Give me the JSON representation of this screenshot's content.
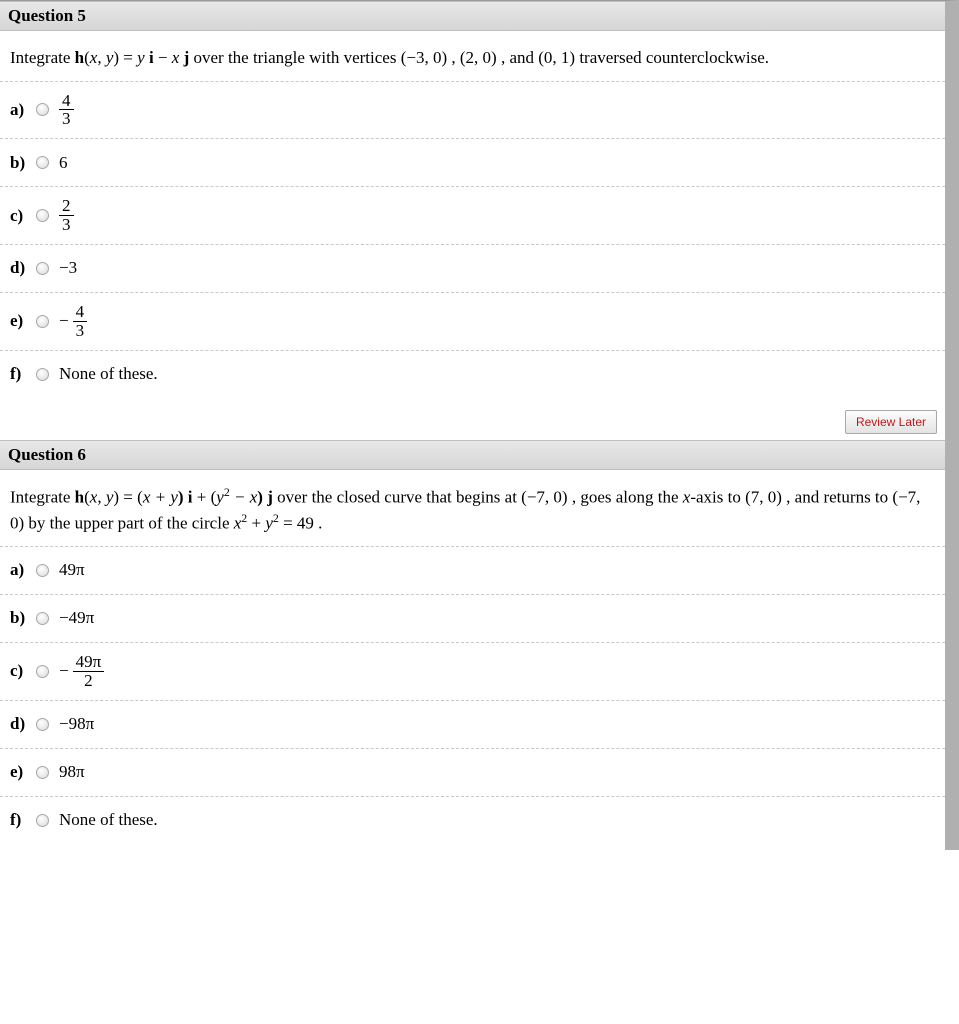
{
  "q5": {
    "header": "Question 5",
    "prompt_parts": {
      "p1": "Integrate  ",
      "fn": "h",
      "args_open": "(",
      "x": "x",
      "comma": ", ",
      "y": "y",
      "args_close": ") = ",
      "term1a": "y",
      "term1b": " i",
      "minus": " − ",
      "term2a": "x",
      "term2b": " j",
      "p2": "   over the triangle with vertices (−3, 0) , (2, 0) , and (0, 1)  traversed counterclockwise."
    },
    "answers": {
      "a": {
        "label": "a)",
        "type": "frac",
        "neg": false,
        "num": "4",
        "den": "3"
      },
      "b": {
        "label": "b)",
        "type": "plain",
        "text": "6"
      },
      "c": {
        "label": "c)",
        "type": "frac",
        "neg": false,
        "num": "2",
        "den": "3"
      },
      "d": {
        "label": "d)",
        "type": "plain",
        "text": "−3"
      },
      "e": {
        "label": "e)",
        "type": "frac",
        "neg": true,
        "num": "4",
        "den": "3"
      },
      "f": {
        "label": "f)",
        "type": "plain",
        "text": "None of these."
      }
    }
  },
  "review_label": "Review Later",
  "q6": {
    "header": "Question 6",
    "prompt_parts": {
      "p1": "Integrate  ",
      "fn": "h",
      "args_open": "(",
      "x": "x",
      "comma": ", ",
      "y": "y",
      "args_close": ") = (",
      "t1": "x + y",
      "t1b": ") i",
      "plus": " + (",
      "t2a": "y",
      "t2exp": "2",
      "t2b": " − x",
      "t2c": ") j",
      "p2": "   over the closed curve that begins at (−7, 0) , goes along the ",
      "xaxis": "x",
      "p2b": "-axis to (7, 0) , and returns to (−7, 0)  by the upper part of the circle ",
      "circ1": "x",
      "exp2a": "2",
      "plus2": " + ",
      "circ2": "y",
      "exp2b": "2",
      "eq": " = 49 ."
    },
    "answers": {
      "a": {
        "label": "a)",
        "type": "plain",
        "text": "49π"
      },
      "b": {
        "label": "b)",
        "type": "plain",
        "text": "−49π"
      },
      "c": {
        "label": "c)",
        "type": "frac",
        "neg": true,
        "num": "49π",
        "den": "2"
      },
      "d": {
        "label": "d)",
        "type": "plain",
        "text": "−98π"
      },
      "e": {
        "label": "e)",
        "type": "plain",
        "text": "98π"
      },
      "f": {
        "label": "f)",
        "type": "plain",
        "text": "None of these."
      }
    }
  }
}
